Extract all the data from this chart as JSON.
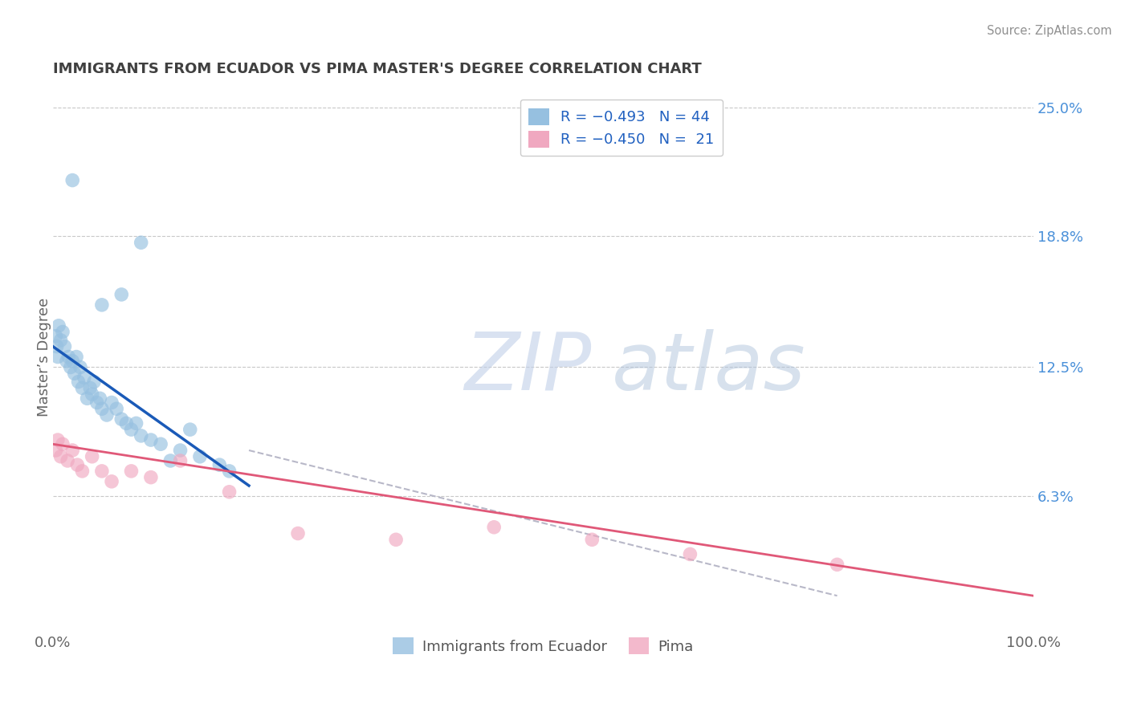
{
  "title": "IMMIGRANTS FROM ECUADOR VS PIMA MASTER'S DEGREE CORRELATION CHART",
  "source": "Source: ZipAtlas.com",
  "ylabel": "Master’s Degree",
  "legend_bottom": [
    "Immigrants from Ecuador",
    "Pima"
  ],
  "blue_scatter_x": [
    0.3,
    0.4,
    0.5,
    0.6,
    0.8,
    1.0,
    1.2,
    1.4,
    1.6,
    1.8,
    2.0,
    2.2,
    2.4,
    2.6,
    2.8,
    3.0,
    3.2,
    3.5,
    3.8,
    4.0,
    4.2,
    4.5,
    4.8,
    5.0,
    5.5,
    6.0,
    6.5,
    7.0,
    7.5,
    8.0,
    8.5,
    9.0,
    10.0,
    11.0,
    13.0,
    15.0,
    17.0,
    2.0,
    5.0,
    7.0,
    9.0,
    12.0,
    14.0,
    18.0
  ],
  "blue_scatter_y": [
    14.0,
    13.5,
    13.0,
    14.5,
    13.8,
    14.2,
    13.5,
    12.8,
    13.0,
    12.5,
    12.8,
    12.2,
    13.0,
    11.8,
    12.5,
    11.5,
    12.0,
    11.0,
    11.5,
    11.2,
    11.8,
    10.8,
    11.0,
    10.5,
    10.2,
    10.8,
    10.5,
    10.0,
    9.8,
    9.5,
    9.8,
    9.2,
    9.0,
    8.8,
    8.5,
    8.2,
    7.8,
    21.5,
    15.5,
    16.0,
    18.5,
    8.0,
    9.5,
    7.5
  ],
  "pink_scatter_x": [
    0.3,
    0.5,
    0.8,
    1.0,
    1.5,
    2.0,
    2.5,
    3.0,
    4.0,
    5.0,
    6.0,
    8.0,
    10.0,
    13.0,
    18.0,
    25.0,
    35.0,
    45.0,
    55.0,
    65.0,
    80.0
  ],
  "pink_scatter_y": [
    8.5,
    9.0,
    8.2,
    8.8,
    8.0,
    8.5,
    7.8,
    7.5,
    8.2,
    7.5,
    7.0,
    7.5,
    7.2,
    8.0,
    6.5,
    4.5,
    4.2,
    4.8,
    4.2,
    3.5,
    3.0
  ],
  "blue_line_x": [
    0.0,
    20.0
  ],
  "blue_line_y": [
    13.5,
    6.8
  ],
  "pink_line_x": [
    0.0,
    100.0
  ],
  "pink_line_y": [
    8.8,
    1.5
  ],
  "dashed_line_x": [
    20.0,
    80.0
  ],
  "dashed_line_y": [
    8.5,
    1.5
  ],
  "xlim": [
    0,
    100
  ],
  "ylim": [
    0,
    26
  ],
  "bg_color": "#ffffff",
  "grid_color": "#c8c8c8",
  "blue_color": "#96c0e0",
  "pink_color": "#f0a8c0",
  "blue_line_color": "#1a5ab8",
  "pink_line_color": "#e05878",
  "dashed_line_color": "#b8b8c8",
  "title_color": "#404040",
  "source_color": "#909090",
  "right_label_color": "#4a90d9",
  "watermark_color": "#c8d8f0",
  "legend_label_color": "#2060c0"
}
